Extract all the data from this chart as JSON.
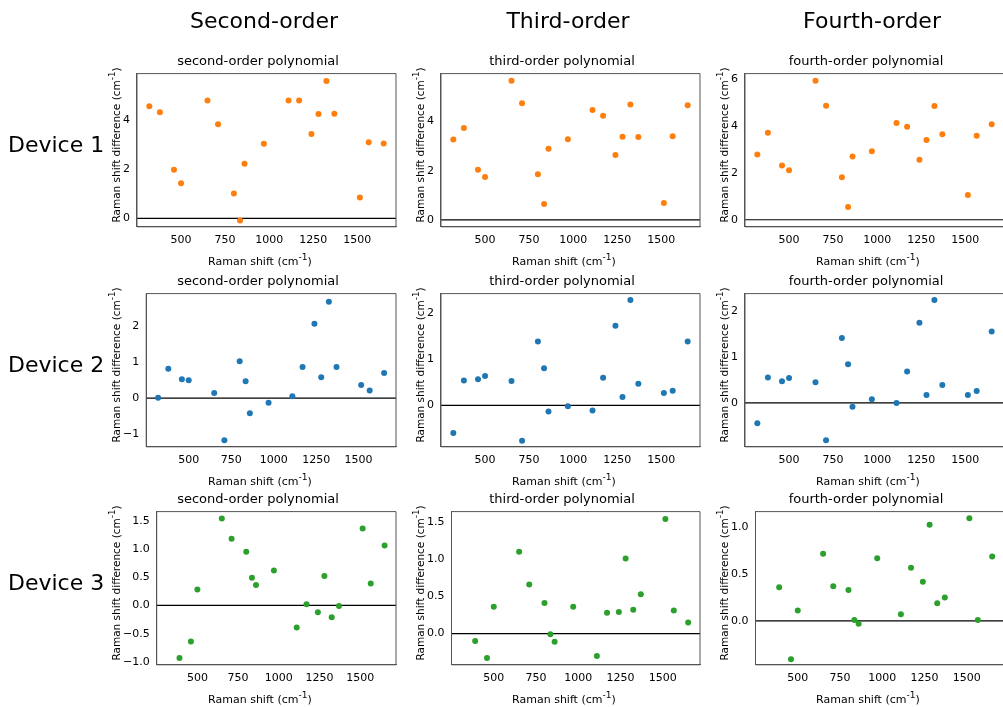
{
  "chart_data": [
    {
      "type": "scatter",
      "title": "second-order polynomial",
      "xlabel": "Raman shift (cm$^{-1}$)",
      "ylabel": "Raman shift difference (cm$^{-1}$)",
      "annotations": [
        "Second-order",
        "Device 1"
      ],
      "marker": "circle",
      "xlim": [
        250,
        1720
      ],
      "xticks": [
        500,
        750,
        1000,
        1250,
        1500
      ],
      "ylim": [
        -0.34,
        5.9
      ],
      "yticks": [
        0,
        2,
        4
      ],
      "ref_lines": [
        {
          "axis": "y",
          "value": 0,
          "color": "#000000"
        }
      ],
      "x": [
        320,
        380,
        460,
        500,
        650,
        710,
        800,
        835,
        860,
        970,
        1110,
        1170,
        1240,
        1280,
        1325,
        1370,
        1515,
        1565,
        1650
      ],
      "series": [
        {
          "color": "#ff7f0e",
          "values": [
            4.57,
            4.33,
            1.98,
            1.43,
            4.8,
            3.84,
            1.02,
            -0.08,
            2.23,
            3.04,
            4.8,
            4.8,
            3.44,
            4.25,
            5.6,
            4.26,
            0.85,
            3.1,
            3.05
          ]
        }
      ]
    },
    {
      "type": "scatter",
      "title": "third-order polynomial",
      "xlabel": "Raman shift (cm$^{-1}$)",
      "ylabel": "Raman shift difference (cm$^{-1}$)",
      "annotations": [
        "Third-order"
      ],
      "marker": "circle",
      "xlim": [
        250,
        1720
      ],
      "xticks": [
        500,
        750,
        1000,
        1250,
        1500
      ],
      "ylim": [
        -0.28,
        5.94
      ],
      "yticks": [
        0,
        2,
        4
      ],
      "ref_lines": [
        {
          "axis": "y",
          "value": 0,
          "color": "#000000"
        }
      ],
      "x": [
        320,
        380,
        460,
        500,
        650,
        710,
        800,
        835,
        860,
        970,
        1110,
        1170,
        1240,
        1280,
        1325,
        1370,
        1515,
        1565,
        1650
      ],
      "series": [
        {
          "color": "#ff7f0e",
          "values": [
            3.26,
            3.73,
            2.04,
            1.74,
            5.65,
            4.74,
            1.85,
            0.65,
            2.89,
            3.27,
            4.46,
            4.23,
            2.64,
            3.38,
            4.69,
            3.37,
            0.69,
            3.4,
            4.65
          ]
        }
      ]
    },
    {
      "type": "scatter",
      "title": "fourth-order polynomial",
      "xlabel": "Raman shift (cm$^{-1}$)",
      "ylabel": "Raman shift difference (cm$^{-1}$)",
      "annotations": [
        "Fourth-order"
      ],
      "marker": "circle",
      "xlim": [
        250,
        1720
      ],
      "xticks": [
        500,
        750,
        1000,
        1250,
        1500
      ],
      "ylim": [
        -0.3,
        6.24
      ],
      "yticks": [
        0,
        2,
        4,
        6
      ],
      "ref_lines": [
        {
          "axis": "y",
          "value": 0,
          "color": "#000000"
        }
      ],
      "x": [
        320,
        380,
        460,
        500,
        650,
        710,
        800,
        835,
        860,
        970,
        1110,
        1170,
        1240,
        1280,
        1325,
        1370,
        1515,
        1565,
        1650
      ],
      "series": [
        {
          "color": "#ff7f0e",
          "values": [
            2.79,
            3.72,
            2.32,
            2.11,
            5.93,
            4.87,
            1.82,
            0.54,
            2.7,
            2.93,
            4.13,
            3.97,
            2.56,
            3.41,
            4.86,
            3.65,
            1.06,
            3.59,
            4.08
          ]
        }
      ]
    },
    {
      "type": "scatter",
      "title": "second-order polynomial",
      "xlabel": "Raman shift (cm$^{-1}$)",
      "ylabel": "Raman shift difference (cm$^{-1}$)",
      "annotations": [
        "Device 2"
      ],
      "marker": "circle",
      "xlim": [
        250,
        1720
      ],
      "xticks": [
        500,
        750,
        1000,
        1250,
        1500
      ],
      "ylim": [
        -1.36,
        2.92
      ],
      "yticks": [
        {
          "value": -1,
          "label": "−1"
        },
        0,
        1,
        2
      ],
      "ref_lines": [
        {
          "axis": "y",
          "value": 0,
          "color": "#000000"
        }
      ],
      "x": [
        320,
        380,
        460,
        500,
        650,
        710,
        800,
        835,
        860,
        970,
        1110,
        1170,
        1240,
        1280,
        1325,
        1370,
        1515,
        1565,
        1650
      ],
      "series": [
        {
          "color": "#1f77b4",
          "values": [
            0.01,
            0.82,
            0.53,
            0.5,
            0.14,
            -1.18,
            1.03,
            0.47,
            -0.42,
            -0.13,
            0.05,
            0.87,
            2.08,
            0.58,
            2.69,
            0.87,
            0.37,
            0.21,
            0.7
          ]
        }
      ]
    },
    {
      "type": "scatter",
      "title": "third-order polynomial",
      "xlabel": "Raman shift (cm$^{-1}$)",
      "ylabel": "Raman shift difference (cm$^{-1}$)",
      "marker": "circle",
      "xlim": [
        250,
        1720
      ],
      "xticks": [
        500,
        750,
        1000,
        1250,
        1500
      ],
      "ylim": [
        -0.9,
        2.43
      ],
      "yticks": [
        0,
        1,
        2
      ],
      "ref_lines": [
        {
          "axis": "y",
          "value": 0,
          "color": "#000000"
        }
      ],
      "x": [
        320,
        380,
        460,
        500,
        650,
        710,
        800,
        835,
        860,
        970,
        1110,
        1170,
        1240,
        1280,
        1325,
        1370,
        1515,
        1565,
        1650
      ],
      "series": [
        {
          "color": "#1f77b4",
          "values": [
            -0.6,
            0.54,
            0.57,
            0.64,
            0.53,
            -0.77,
            1.39,
            0.81,
            -0.13,
            -0.02,
            -0.11,
            0.6,
            1.73,
            0.18,
            2.29,
            0.47,
            0.27,
            0.32,
            1.39
          ]
        }
      ]
    },
    {
      "type": "scatter",
      "title": "fourth-order polynomial",
      "xlabel": "Raman shift (cm$^{-1}$)",
      "ylabel": "Raman shift difference (cm$^{-1}$)",
      "marker": "circle",
      "xlim": [
        250,
        1720
      ],
      "xticks": [
        500,
        750,
        1000,
        1250,
        1500
      ],
      "ylim": [
        -0.95,
        2.37
      ],
      "yticks": [
        0,
        1,
        2
      ],
      "ref_lines": [
        {
          "axis": "y",
          "value": 0,
          "color": "#000000"
        }
      ],
      "x": [
        320,
        380,
        460,
        500,
        650,
        710,
        800,
        835,
        860,
        970,
        1110,
        1170,
        1240,
        1280,
        1325,
        1370,
        1515,
        1565,
        1650
      ],
      "series": [
        {
          "color": "#1f77b4",
          "values": [
            -0.44,
            0.55,
            0.47,
            0.54,
            0.45,
            -0.81,
            1.41,
            0.84,
            -0.08,
            0.08,
            0.0,
            0.68,
            1.74,
            0.17,
            2.23,
            0.39,
            0.17,
            0.26,
            1.55
          ]
        }
      ]
    },
    {
      "type": "scatter",
      "title": "second-order polynomial",
      "xlabel": "Raman shift (cm$^{-1}$)",
      "ylabel": "Raman shift difference (cm$^{-1}$)",
      "annotations": [
        "Device 3"
      ],
      "marker": "circle",
      "xlim": [
        250,
        1720
      ],
      "xticks": [
        500,
        750,
        1000,
        1250,
        1500
      ],
      "ylim": [
        -1.05,
        1.66
      ],
      "yticks": [
        {
          "value": -1,
          "label": "−1.0"
        },
        {
          "value": -0.5,
          "label": "−0.5"
        },
        {
          "value": 0,
          "label": "0.0"
        },
        0.5,
        {
          "value": 1,
          "label": "1.0"
        },
        1.5
      ],
      "ref_lines": [
        {
          "axis": "y",
          "value": 0,
          "color": "#000000"
        }
      ],
      "x": [
        390,
        460,
        500,
        650,
        710,
        800,
        835,
        860,
        970,
        1110,
        1170,
        1240,
        1280,
        1325,
        1370,
        1515,
        1565,
        1650
      ],
      "series": [
        {
          "color": "#2ca02c",
          "values": [
            -0.93,
            -0.64,
            0.28,
            1.54,
            1.18,
            0.95,
            0.49,
            0.36,
            0.62,
            -0.39,
            0.02,
            -0.12,
            0.52,
            -0.21,
            -0.01,
            1.36,
            0.39,
            1.06
          ]
        }
      ]
    },
    {
      "type": "scatter",
      "title": "third-order polynomial",
      "xlabel": "Raman shift (cm$^{-1}$)",
      "ylabel": "Raman shift difference (cm$^{-1}$)",
      "marker": "circle",
      "xlim": [
        250,
        1720
      ],
      "xticks": [
        500,
        750,
        1000,
        1250,
        1500
      ],
      "ylim": [
        -0.42,
        1.64
      ],
      "yticks": [
        {
          "value": 0,
          "label": "0.0"
        },
        0.5,
        {
          "value": 1,
          "label": "1.0"
        },
        1.5
      ],
      "ref_lines": [
        {
          "axis": "y",
          "value": 0,
          "color": "#000000"
        }
      ],
      "x": [
        390,
        460,
        500,
        650,
        710,
        800,
        835,
        860,
        970,
        1110,
        1170,
        1240,
        1280,
        1325,
        1370,
        1515,
        1565,
        1650
      ],
      "series": [
        {
          "color": "#2ca02c",
          "values": [
            -0.1,
            -0.33,
            0.36,
            1.1,
            0.66,
            0.41,
            -0.01,
            -0.11,
            0.36,
            -0.3,
            0.28,
            0.29,
            1.01,
            0.32,
            0.53,
            1.54,
            0.31,
            0.15
          ]
        }
      ]
    },
    {
      "type": "scatter",
      "title": "fourth-order polynomial",
      "xlabel": "Raman shift (cm$^{-1}$)",
      "ylabel": "Raman shift difference (cm$^{-1}$)",
      "marker": "circle",
      "xlim": [
        250,
        1720
      ],
      "xticks": [
        500,
        750,
        1000,
        1250,
        1500
      ],
      "ylim": [
        -0.47,
        1.17
      ],
      "yticks": [
        {
          "value": 0,
          "label": "0.0"
        },
        0.5,
        {
          "value": 1,
          "label": "1.0"
        }
      ],
      "ref_lines": [
        {
          "axis": "y",
          "value": 0,
          "color": "#000000"
        }
      ],
      "x": [
        390,
        460,
        500,
        650,
        710,
        800,
        835,
        860,
        970,
        1110,
        1170,
        1240,
        1280,
        1325,
        1370,
        1515,
        1565,
        1650
      ],
      "series": [
        {
          "color": "#2ca02c",
          "values": [
            0.36,
            -0.41,
            0.11,
            0.72,
            0.37,
            0.33,
            0.01,
            -0.03,
            0.67,
            0.07,
            0.57,
            0.42,
            1.03,
            0.19,
            0.25,
            1.1,
            0.01,
            0.69
          ]
        }
      ]
    }
  ]
}
